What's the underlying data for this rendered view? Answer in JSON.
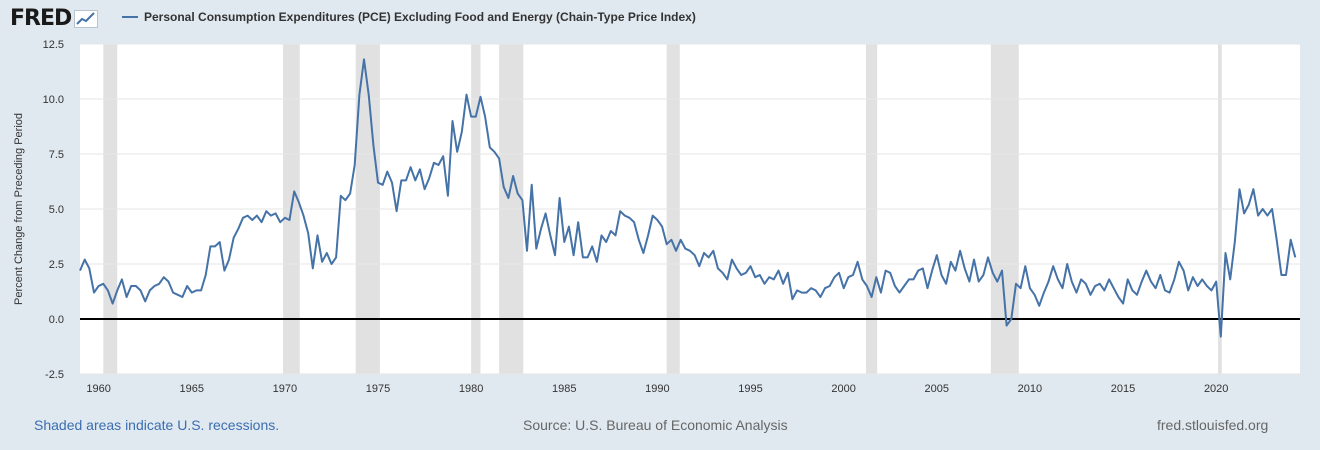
{
  "brand": {
    "logo_text": "FRED"
  },
  "legend": {
    "series_name": "Personal Consumption Expenditures (PCE) Excluding Food and Energy (Chain-Type Price Index)",
    "color": "#4572a7"
  },
  "footer": {
    "recessions_note": "Shaded areas indicate U.S. recessions.",
    "source": "Source: U.S. Bureau of Economic Analysis",
    "site": "fred.stlouisfed.org"
  },
  "chart_data": {
    "type": "line",
    "ylabel": "Percent Change from Preceding Period",
    "xlabel": "",
    "xlim": [
      1959.0,
      2024.5
    ],
    "ylim": [
      -2.5,
      12.5
    ],
    "x_ticks": [
      1960,
      1965,
      1970,
      1975,
      1980,
      1985,
      1990,
      1995,
      2000,
      2005,
      2010,
      2015,
      2020
    ],
    "y_ticks": [
      -2.5,
      0.0,
      2.5,
      5.0,
      7.5,
      10.0,
      12.5
    ],
    "grid": "horizontal",
    "zero_line": true,
    "recessions": [
      [
        1960.25,
        1961.0
      ],
      [
        1969.9,
        1970.8
      ],
      [
        1973.8,
        1975.1
      ],
      [
        1980.0,
        1980.5
      ],
      [
        1981.5,
        1982.8
      ],
      [
        1990.5,
        1991.2
      ],
      [
        2001.2,
        2001.8
      ],
      [
        2007.9,
        2009.4
      ],
      [
        2020.1,
        2020.3
      ]
    ],
    "recession_color": "#e1e1e1",
    "series": [
      {
        "color": "#4572a7",
        "points": [
          [
            1959.0,
            2.2
          ],
          [
            1959.25,
            2.7
          ],
          [
            1959.5,
            2.3
          ],
          [
            1959.75,
            1.2
          ],
          [
            1960.0,
            1.5
          ],
          [
            1960.25,
            1.6
          ],
          [
            1960.5,
            1.3
          ],
          [
            1960.75,
            0.7
          ],
          [
            1961.0,
            1.3
          ],
          [
            1961.25,
            1.8
          ],
          [
            1961.5,
            1.0
          ],
          [
            1961.75,
            1.5
          ],
          [
            1962.0,
            1.5
          ],
          [
            1962.25,
            1.3
          ],
          [
            1962.5,
            0.8
          ],
          [
            1962.75,
            1.3
          ],
          [
            1963.0,
            1.5
          ],
          [
            1963.25,
            1.6
          ],
          [
            1963.5,
            1.9
          ],
          [
            1963.75,
            1.7
          ],
          [
            1964.0,
            1.2
          ],
          [
            1964.25,
            1.1
          ],
          [
            1964.5,
            1.0
          ],
          [
            1964.75,
            1.5
          ],
          [
            1965.0,
            1.2
          ],
          [
            1965.25,
            1.3
          ],
          [
            1965.5,
            1.3
          ],
          [
            1965.75,
            2.0
          ],
          [
            1966.0,
            3.3
          ],
          [
            1966.25,
            3.3
          ],
          [
            1966.5,
            3.5
          ],
          [
            1966.75,
            2.2
          ],
          [
            1967.0,
            2.7
          ],
          [
            1967.25,
            3.7
          ],
          [
            1967.5,
            4.1
          ],
          [
            1967.75,
            4.6
          ],
          [
            1968.0,
            4.7
          ],
          [
            1968.25,
            4.5
          ],
          [
            1968.5,
            4.7
          ],
          [
            1968.75,
            4.4
          ],
          [
            1969.0,
            4.9
          ],
          [
            1969.25,
            4.7
          ],
          [
            1969.5,
            4.8
          ],
          [
            1969.75,
            4.4
          ],
          [
            1970.0,
            4.6
          ],
          [
            1970.25,
            4.5
          ],
          [
            1970.5,
            5.8
          ],
          [
            1970.75,
            5.3
          ],
          [
            1971.0,
            4.7
          ],
          [
            1971.25,
            3.9
          ],
          [
            1971.5,
            2.3
          ],
          [
            1971.75,
            3.8
          ],
          [
            1972.0,
            2.6
          ],
          [
            1972.25,
            3.0
          ],
          [
            1972.5,
            2.5
          ],
          [
            1972.75,
            2.8
          ],
          [
            1973.0,
            5.6
          ],
          [
            1973.25,
            5.4
          ],
          [
            1973.5,
            5.7
          ],
          [
            1973.75,
            7.0
          ],
          [
            1974.0,
            10.2
          ],
          [
            1974.25,
            11.8
          ],
          [
            1974.5,
            10.2
          ],
          [
            1974.75,
            7.9
          ],
          [
            1975.0,
            6.2
          ],
          [
            1975.25,
            6.1
          ],
          [
            1975.5,
            6.7
          ],
          [
            1975.75,
            6.2
          ],
          [
            1976.0,
            4.9
          ],
          [
            1976.25,
            6.3
          ],
          [
            1976.5,
            6.3
          ],
          [
            1976.75,
            6.9
          ],
          [
            1977.0,
            6.3
          ],
          [
            1977.25,
            6.8
          ],
          [
            1977.5,
            5.9
          ],
          [
            1977.75,
            6.4
          ],
          [
            1978.0,
            7.1
          ],
          [
            1978.25,
            7.0
          ],
          [
            1978.5,
            7.4
          ],
          [
            1978.75,
            5.6
          ],
          [
            1979.0,
            9.0
          ],
          [
            1979.25,
            7.6
          ],
          [
            1979.5,
            8.5
          ],
          [
            1979.75,
            10.2
          ],
          [
            1980.0,
            9.2
          ],
          [
            1980.25,
            9.2
          ],
          [
            1980.5,
            10.1
          ],
          [
            1980.75,
            9.2
          ],
          [
            1981.0,
            7.8
          ],
          [
            1981.25,
            7.6
          ],
          [
            1981.5,
            7.3
          ],
          [
            1981.75,
            6.0
          ],
          [
            1982.0,
            5.5
          ],
          [
            1982.25,
            6.5
          ],
          [
            1982.5,
            5.7
          ],
          [
            1982.75,
            5.4
          ],
          [
            1983.0,
            3.1
          ],
          [
            1983.25,
            6.1
          ],
          [
            1983.5,
            3.2
          ],
          [
            1983.75,
            4.1
          ],
          [
            1984.0,
            4.8
          ],
          [
            1984.25,
            3.8
          ],
          [
            1984.5,
            2.9
          ],
          [
            1984.75,
            5.5
          ],
          [
            1985.0,
            3.5
          ],
          [
            1985.25,
            4.2
          ],
          [
            1985.5,
            2.9
          ],
          [
            1985.75,
            4.4
          ],
          [
            1986.0,
            2.8
          ],
          [
            1986.25,
            2.8
          ],
          [
            1986.5,
            3.3
          ],
          [
            1986.75,
            2.6
          ],
          [
            1987.0,
            3.8
          ],
          [
            1987.25,
            3.5
          ],
          [
            1987.5,
            4.0
          ],
          [
            1987.75,
            3.8
          ],
          [
            1988.0,
            4.9
          ],
          [
            1988.25,
            4.7
          ],
          [
            1988.5,
            4.6
          ],
          [
            1988.75,
            4.4
          ],
          [
            1989.0,
            3.6
          ],
          [
            1989.25,
            3.0
          ],
          [
            1989.5,
            3.8
          ],
          [
            1989.75,
            4.7
          ],
          [
            1990.0,
            4.5
          ],
          [
            1990.25,
            4.2
          ],
          [
            1990.5,
            3.4
          ],
          [
            1990.75,
            3.6
          ],
          [
            1991.0,
            3.1
          ],
          [
            1991.25,
            3.6
          ],
          [
            1991.5,
            3.2
          ],
          [
            1991.75,
            3.1
          ],
          [
            1992.0,
            2.9
          ],
          [
            1992.25,
            2.4
          ],
          [
            1992.5,
            3.0
          ],
          [
            1992.75,
            2.8
          ],
          [
            1993.0,
            3.1
          ],
          [
            1993.25,
            2.3
          ],
          [
            1993.5,
            2.1
          ],
          [
            1993.75,
            1.8
          ],
          [
            1994.0,
            2.7
          ],
          [
            1994.25,
            2.3
          ],
          [
            1994.5,
            2.0
          ],
          [
            1994.75,
            2.1
          ],
          [
            1995.0,
            2.4
          ],
          [
            1995.25,
            1.9
          ],
          [
            1995.5,
            2.0
          ],
          [
            1995.75,
            1.6
          ],
          [
            1996.0,
            1.9
          ],
          [
            1996.25,
            1.8
          ],
          [
            1996.5,
            2.2
          ],
          [
            1996.75,
            1.6
          ],
          [
            1997.0,
            2.1
          ],
          [
            1997.25,
            0.9
          ],
          [
            1997.5,
            1.3
          ],
          [
            1997.75,
            1.2
          ],
          [
            1998.0,
            1.2
          ],
          [
            1998.25,
            1.4
          ],
          [
            1998.5,
            1.3
          ],
          [
            1998.75,
            1.0
          ],
          [
            1999.0,
            1.4
          ],
          [
            1999.25,
            1.5
          ],
          [
            1999.5,
            1.9
          ],
          [
            1999.75,
            2.1
          ],
          [
            2000.0,
            1.4
          ],
          [
            2000.25,
            1.9
          ],
          [
            2000.5,
            2.0
          ],
          [
            2000.75,
            2.6
          ],
          [
            2001.0,
            1.8
          ],
          [
            2001.25,
            1.5
          ],
          [
            2001.5,
            1.0
          ],
          [
            2001.75,
            1.9
          ],
          [
            2002.0,
            1.2
          ],
          [
            2002.25,
            2.2
          ],
          [
            2002.5,
            2.1
          ],
          [
            2002.75,
            1.5
          ],
          [
            2003.0,
            1.2
          ],
          [
            2003.25,
            1.5
          ],
          [
            2003.5,
            1.8
          ],
          [
            2003.75,
            1.8
          ],
          [
            2004.0,
            2.2
          ],
          [
            2004.25,
            2.3
          ],
          [
            2004.5,
            1.4
          ],
          [
            2004.75,
            2.2
          ],
          [
            2005.0,
            2.9
          ],
          [
            2005.25,
            2.0
          ],
          [
            2005.5,
            1.6
          ],
          [
            2005.75,
            2.6
          ],
          [
            2006.0,
            2.2
          ],
          [
            2006.25,
            3.1
          ],
          [
            2006.5,
            2.3
          ],
          [
            2006.75,
            1.7
          ],
          [
            2007.0,
            2.7
          ],
          [
            2007.25,
            1.7
          ],
          [
            2007.5,
            2.0
          ],
          [
            2007.75,
            2.8
          ],
          [
            2008.0,
            2.1
          ],
          [
            2008.25,
            1.7
          ],
          [
            2008.5,
            2.2
          ],
          [
            2008.75,
            -0.3
          ],
          [
            2009.0,
            0.0
          ],
          [
            2009.25,
            1.6
          ],
          [
            2009.5,
            1.4
          ],
          [
            2009.75,
            2.4
          ],
          [
            2010.0,
            1.4
          ],
          [
            2010.25,
            1.1
          ],
          [
            2010.5,
            0.6
          ],
          [
            2010.75,
            1.2
          ],
          [
            2011.0,
            1.7
          ],
          [
            2011.25,
            2.4
          ],
          [
            2011.5,
            1.8
          ],
          [
            2011.75,
            1.4
          ],
          [
            2012.0,
            2.5
          ],
          [
            2012.25,
            1.7
          ],
          [
            2012.5,
            1.2
          ],
          [
            2012.75,
            1.8
          ],
          [
            2013.0,
            1.6
          ],
          [
            2013.25,
            1.1
          ],
          [
            2013.5,
            1.5
          ],
          [
            2013.75,
            1.6
          ],
          [
            2014.0,
            1.3
          ],
          [
            2014.25,
            1.8
          ],
          [
            2014.5,
            1.4
          ],
          [
            2014.75,
            1.0
          ],
          [
            2015.0,
            0.7
          ],
          [
            2015.25,
            1.8
          ],
          [
            2015.5,
            1.3
          ],
          [
            2015.75,
            1.1
          ],
          [
            2016.0,
            1.7
          ],
          [
            2016.25,
            2.2
          ],
          [
            2016.5,
            1.7
          ],
          [
            2016.75,
            1.4
          ],
          [
            2017.0,
            2.0
          ],
          [
            2017.25,
            1.3
          ],
          [
            2017.5,
            1.2
          ],
          [
            2017.75,
            1.8
          ],
          [
            2018.0,
            2.6
          ],
          [
            2018.25,
            2.2
          ],
          [
            2018.5,
            1.3
          ],
          [
            2018.75,
            1.9
          ],
          [
            2019.0,
            1.5
          ],
          [
            2019.25,
            1.8
          ],
          [
            2019.5,
            1.5
          ],
          [
            2019.75,
            1.3
          ],
          [
            2020.0,
            1.7
          ],
          [
            2020.25,
            -0.8
          ],
          [
            2020.5,
            3.0
          ],
          [
            2020.75,
            1.8
          ],
          [
            2021.0,
            3.5
          ],
          [
            2021.25,
            5.9
          ],
          [
            2021.5,
            4.8
          ],
          [
            2021.75,
            5.2
          ],
          [
            2022.0,
            5.9
          ],
          [
            2022.25,
            4.7
          ],
          [
            2022.5,
            5.0
          ],
          [
            2022.75,
            4.7
          ],
          [
            2023.0,
            5.0
          ],
          [
            2023.25,
            3.6
          ],
          [
            2023.5,
            2.0
          ],
          [
            2023.75,
            2.0
          ],
          [
            2024.0,
            3.6
          ],
          [
            2024.25,
            2.8
          ]
        ]
      }
    ]
  }
}
